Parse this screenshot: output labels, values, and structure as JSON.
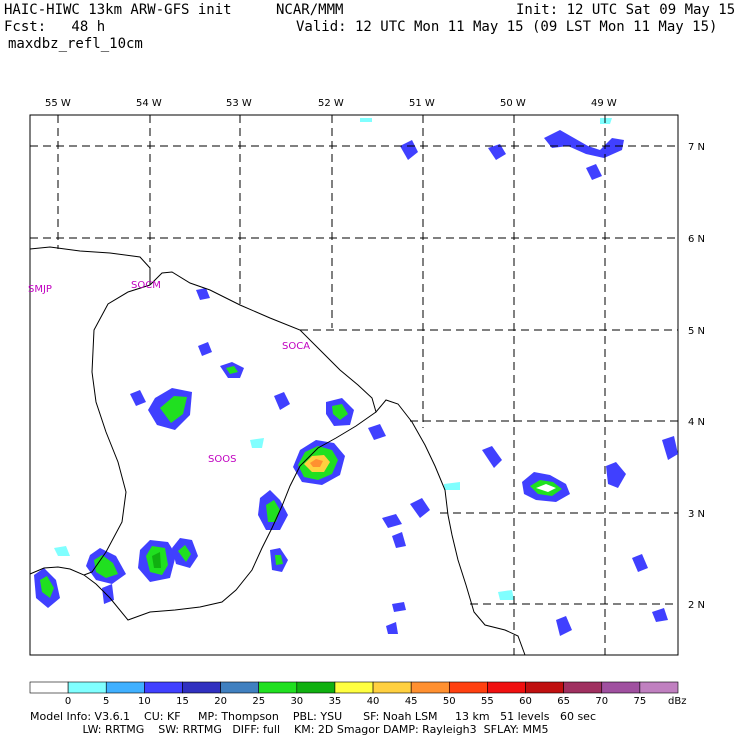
{
  "header": {
    "model_title": "HAIC-HIWC 13km ARW-GFS init",
    "org": "NCAR/MMM",
    "init": "Init: 12 UTC Sat 09 May 15",
    "fcst": "Fcst:   48 h",
    "valid": "Valid: 12 UTC Mon 11 May 15 (09 LST Mon 11 May 15)",
    "field": "maxdbz_refl_10cm"
  },
  "map": {
    "lon_labels": [
      "55 W",
      "54 W",
      "53 W",
      "52 W",
      "51 W",
      "50 W",
      "49 W"
    ],
    "lat_labels": [
      "7 N",
      "6 N",
      "5 N",
      "4 N",
      "3 N",
      "2 N"
    ],
    "stations": [
      "SMJP",
      "SOCM",
      "SOCA",
      "SOOS"
    ]
  },
  "colorbar": {
    "ticks": [
      "0",
      "5",
      "10",
      "15",
      "20",
      "25",
      "30",
      "35",
      "40",
      "45",
      "50",
      "55",
      "60",
      "65",
      "70",
      "75"
    ],
    "unit": "dBz",
    "colors": [
      "#ffffff",
      "#80ffff",
      "#40b0ff",
      "#4040ff",
      "#3030c0",
      "#4080c0",
      "#20e020",
      "#10b010",
      "#ffff40",
      "#ffd040",
      "#ff9030",
      "#ff4010",
      "#f01010",
      "#c01010",
      "#a03060",
      "#a050a0",
      "#c080c0"
    ]
  },
  "footer": {
    "line1": "Model Info: V3.6.1    CU: KF     MP: Thompson    PBL: YSU      SF: Noah LSM     13 km   51 levels   60 sec",
    "line2": "               LW: RRTMG    SW: RRTMG   DIFF: full    KM: 2D Smagor DAMP: Rayleigh3  SFLAY: MM5"
  }
}
